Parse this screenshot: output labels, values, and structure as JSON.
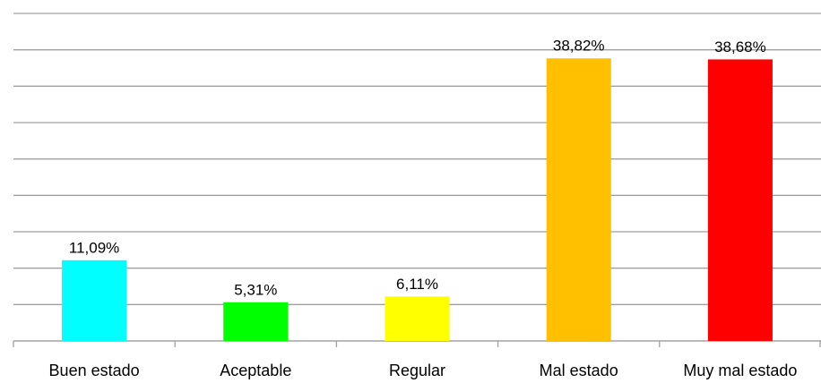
{
  "chart_data": {
    "type": "bar",
    "categories": [
      "Buen estado",
      "Aceptable",
      "Regular",
      "Mal estado",
      "Muy mal estado"
    ],
    "values": [
      11.09,
      5.31,
      6.11,
      38.82,
      38.68
    ],
    "value_labels": [
      "11,09%",
      "5,31%",
      "6,11%",
      "38,82%",
      "38,68%"
    ],
    "colors": [
      "#00ffff",
      "#00ff00",
      "#ffff00",
      "#ffc000",
      "#ff0000"
    ],
    "ylim": [
      0,
      45
    ],
    "yticks": [
      0,
      5,
      10,
      15,
      20,
      25,
      30,
      35,
      40,
      45
    ],
    "grid": true
  }
}
